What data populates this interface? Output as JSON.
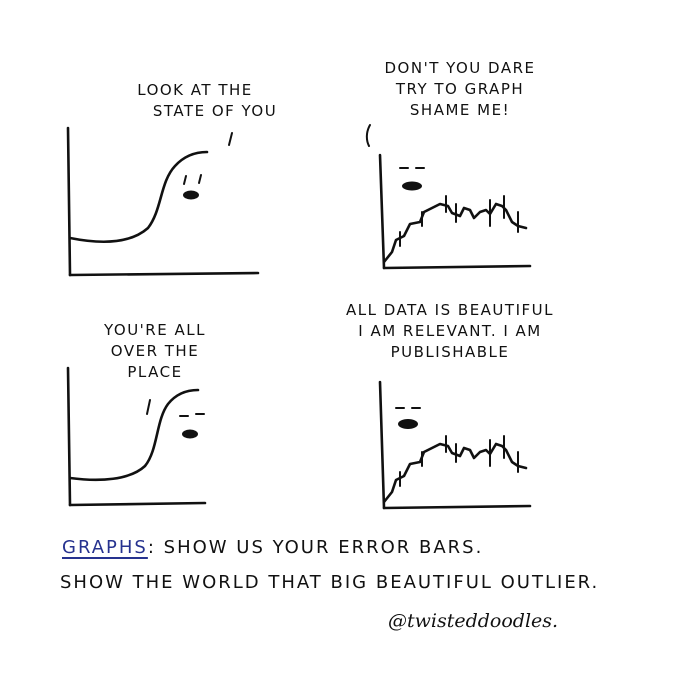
{
  "panels": [
    {
      "speech_lines": [
        "LOOK AT THE",
        "STATE OF YOU"
      ]
    },
    {
      "speech_lines": [
        "DON'T YOU DARE",
        "TRY TO GRAPH",
        "SHAME ME!"
      ]
    },
    {
      "speech_lines": [
        "YOU'RE ALL",
        "OVER THE",
        "PLACE"
      ]
    },
    {
      "speech_lines": [
        "ALL DATA IS BEAUTIFUL",
        "I AM RELEVANT. I AM",
        "PUBLISHABLE"
      ]
    }
  ],
  "caption": {
    "graphs_word": "GRAPHS",
    "line1_rest": ": SHOW US YOUR ERROR BARS.",
    "line2": "SHOW THE WORLD THAT BIG BEAUTIFUL OUTLIER."
  },
  "signature": "@twisteddoodles.",
  "colors": {
    "ink": "#111111",
    "accent": "#26328f"
  }
}
